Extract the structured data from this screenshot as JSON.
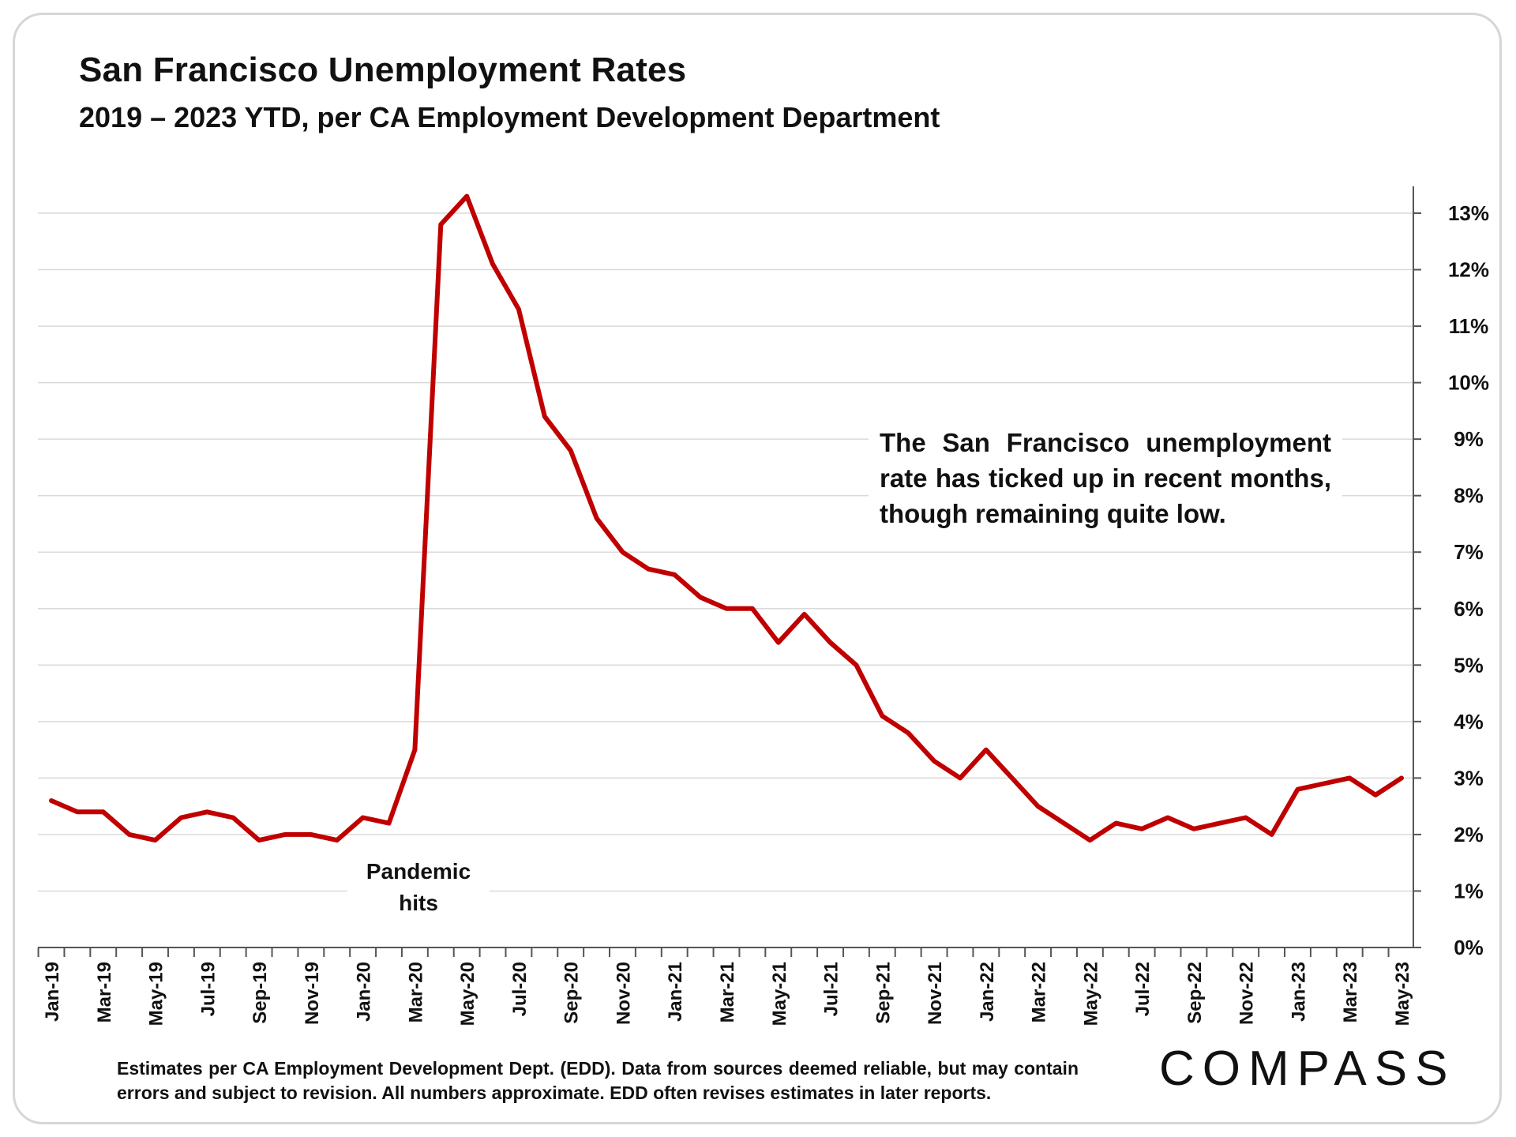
{
  "header": {
    "title": "San Francisco Unemployment Rates",
    "subtitle": "2019 – 2023 YTD, per CA Employment Development Department"
  },
  "annotations": {
    "callout": "The San Francisco unemployment rate has ticked up in recent months, though remaining quite low.",
    "pandemic_line1": "Pandemic",
    "pandemic_line2": "hits"
  },
  "footer": {
    "note": "Estimates per CA Employment Development Dept. (EDD). Data from sources deemed reliable, but may contain errors and subject to revision. All numbers approximate.  EDD often revises estimates in later reports.",
    "logo": "COMPASS"
  },
  "colors": {
    "line": "#C00000",
    "grid": "#d9d9d9",
    "axis": "#555555"
  },
  "chart_data": {
    "type": "line",
    "title": "San Francisco Unemployment Rates",
    "subtitle": "2019 – 2023 YTD, per CA Employment Development Department",
    "xlabel": "",
    "ylabel": "",
    "ylim": [
      0,
      13
    ],
    "y_axis_side": "right",
    "grid": true,
    "y_ticks": [
      "0%",
      "1%",
      "2%",
      "3%",
      "4%",
      "5%",
      "6%",
      "7%",
      "8%",
      "9%",
      "10%",
      "11%",
      "12%",
      "13%"
    ],
    "x_tick_labels": [
      "Jan-19",
      "Mar-19",
      "May-19",
      "Jul-19",
      "Sep-19",
      "Nov-19",
      "Jan-20",
      "Mar-20",
      "May-20",
      "Jul-20",
      "Sep-20",
      "Nov-20",
      "Jan-21",
      "Mar-21",
      "May-21",
      "Jul-21",
      "Sep-21",
      "Nov-21",
      "Jan-22",
      "Mar-22",
      "May-22",
      "Jul-22",
      "Sep-22",
      "Nov-22",
      "Jan-23",
      "Mar-23",
      "May-23"
    ],
    "categories": [
      "Jan-19",
      "Feb-19",
      "Mar-19",
      "Apr-19",
      "May-19",
      "Jun-19",
      "Jul-19",
      "Aug-19",
      "Sep-19",
      "Oct-19",
      "Nov-19",
      "Dec-19",
      "Jan-20",
      "Feb-20",
      "Mar-20",
      "Apr-20",
      "May-20",
      "Jun-20",
      "Jul-20",
      "Aug-20",
      "Sep-20",
      "Oct-20",
      "Nov-20",
      "Dec-20",
      "Jan-21",
      "Feb-21",
      "Mar-21",
      "Apr-21",
      "May-21",
      "Jun-21",
      "Jul-21",
      "Aug-21",
      "Sep-21",
      "Oct-21",
      "Nov-21",
      "Dec-21",
      "Jan-22",
      "Feb-22",
      "Mar-22",
      "Apr-22",
      "May-22",
      "Jun-22",
      "Jul-22",
      "Aug-22",
      "Sep-22",
      "Oct-22",
      "Nov-22",
      "Dec-22",
      "Jan-23",
      "Feb-23",
      "Mar-23",
      "Apr-23",
      "May-23"
    ],
    "series": [
      {
        "name": "San Francisco Unemployment Rate (%)",
        "values": [
          2.6,
          2.4,
          2.4,
          2.0,
          1.9,
          2.3,
          2.4,
          2.3,
          1.9,
          2.0,
          2.0,
          1.9,
          2.3,
          2.2,
          3.5,
          12.8,
          13.3,
          12.1,
          11.3,
          9.4,
          8.8,
          7.6,
          7.0,
          6.7,
          6.6,
          6.2,
          6.0,
          6.0,
          5.4,
          5.9,
          5.4,
          5.0,
          4.1,
          3.8,
          3.3,
          3.0,
          3.5,
          3.0,
          2.5,
          2.2,
          1.9,
          2.2,
          2.1,
          2.3,
          2.1,
          2.2,
          2.3,
          2.0,
          2.8,
          2.9,
          3.0,
          2.7,
          3.0
        ]
      }
    ]
  }
}
